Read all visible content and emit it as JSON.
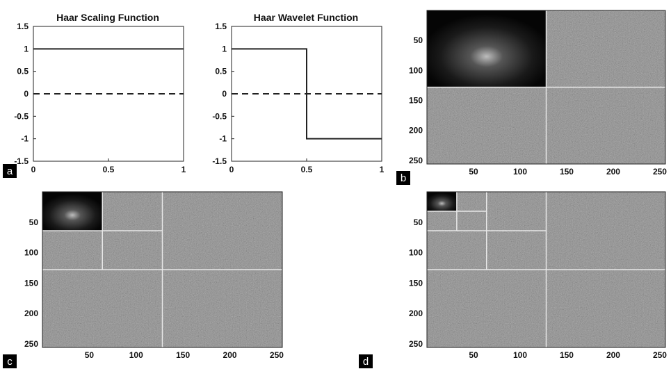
{
  "chart_data": [
    {
      "panel": "a",
      "type": "line",
      "title": "Haar Scaling Function",
      "xlim": [
        0,
        1
      ],
      "ylim": [
        -1.5,
        1.5
      ],
      "xticks": [
        "0",
        "0.5",
        "1"
      ],
      "yticks": [
        "1.5",
        "1",
        "0.5",
        "0",
        "-0.5",
        "-1",
        "-1.5"
      ],
      "series": [
        {
          "style": "solid",
          "x": [
            0,
            1
          ],
          "y": [
            1,
            1
          ]
        },
        {
          "style": "dashed",
          "x": [
            0,
            1
          ],
          "y": [
            0,
            0
          ]
        }
      ]
    },
    {
      "type": "line",
      "title": "Haar Wavelet Function",
      "xlim": [
        0,
        1
      ],
      "ylim": [
        -1.5,
        1.5
      ],
      "xticks": [
        "0",
        "0.5",
        "1"
      ],
      "yticks": [
        "1.5",
        "1",
        "0.5",
        "0",
        "-0.5",
        "-1",
        "-1.5"
      ],
      "series": [
        {
          "style": "solid",
          "x": [
            0,
            0.5,
            0.5,
            1
          ],
          "y": [
            1,
            1,
            -1,
            -1
          ]
        },
        {
          "style": "dashed",
          "x": [
            0,
            1
          ],
          "y": [
            0,
            0
          ]
        }
      ]
    },
    {
      "panel": "b",
      "type": "heatmap",
      "levels": 1,
      "xticks": [
        "50",
        "100",
        "150",
        "200",
        "250"
      ],
      "yticks": [
        "50",
        "100",
        "150",
        "200",
        "250"
      ]
    },
    {
      "panel": "c",
      "type": "heatmap",
      "levels": 2,
      "xticks": [
        "50",
        "100",
        "150",
        "200",
        "250"
      ],
      "yticks": [
        "50",
        "100",
        "150",
        "200",
        "250"
      ]
    },
    {
      "panel": "d",
      "type": "heatmap",
      "levels": 3,
      "xticks": [
        "50",
        "100",
        "150",
        "200",
        "250"
      ],
      "yticks": [
        "50",
        "100",
        "150",
        "200",
        "250"
      ]
    }
  ],
  "labels": {
    "a": "a",
    "b": "b",
    "c": "c",
    "d": "d"
  },
  "colors": {
    "background": "#ffffff",
    "detail_gray": "#6f6f6f",
    "approx_dark": "#050505",
    "separator": "#e8e8e8",
    "label_bg": "#000000"
  }
}
